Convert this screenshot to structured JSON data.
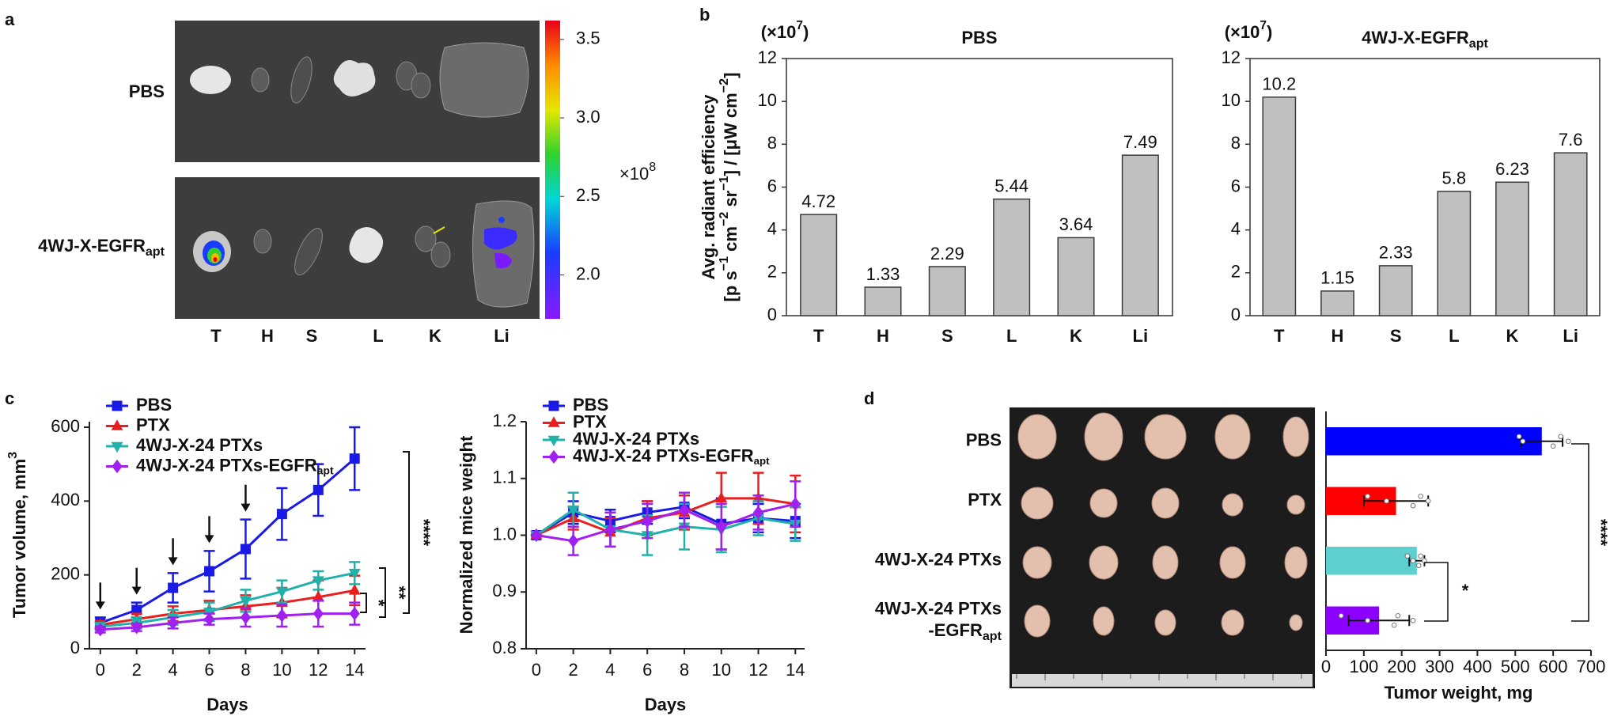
{
  "panel_labels": [
    "a",
    "b",
    "c",
    "d"
  ],
  "imaging": {
    "rows": [
      "PBS",
      [
        {
          "text": "4WJ-X-EGFR"
        },
        {
          "text": "apt",
          "sub": true
        }
      ]
    ],
    "organs": [
      "T",
      "H",
      "S",
      "L",
      "K",
      "Li"
    ],
    "colorbar": {
      "lim": [
        1.72,
        3.62
      ],
      "ticks": [
        3.5,
        {
          "value": 3,
          "label": "3.0"
        },
        2.5,
        {
          "value": 2,
          "label": "2.0"
        }
      ],
      "scale": [
        {
          "text": "×10"
        },
        {
          "text": "8",
          "sup": true
        }
      ]
    }
  },
  "chart_data": [
    {
      "type": "bar",
      "title": "PBS",
      "scale": [
        {
          "text": "(×10"
        },
        {
          "text": "7",
          "sup": true
        },
        {
          "text": ")"
        }
      ],
      "ylabel": "Avg. radiant efficiency",
      "ylabel_units": [
        {
          "text": "[p s"
        },
        {
          "text": "−1",
          "sup": true
        },
        {
          "text": " cm"
        },
        {
          "text": "−2",
          "sup": true
        },
        {
          "text": " sr"
        },
        {
          "text": "−1",
          "sup": true
        },
        {
          "text": "] / [μW cm"
        },
        {
          "text": "−2",
          "sup": true
        },
        {
          "text": "]"
        }
      ],
      "categories": [
        "T",
        "H",
        "S",
        "L",
        "K",
        "Li"
      ],
      "values": [
        4.72,
        1.33,
        2.29,
        5.44,
        3.64,
        7.49
      ],
      "color": "#c0c0c0",
      "edgecolor": "#3a3a3a",
      "ylim": [
        0,
        12
      ],
      "yticks": [
        0,
        2,
        4,
        6,
        8,
        10,
        12
      ]
    },
    {
      "type": "bar",
      "title": [
        {
          "text": "4WJ-X-EGFR"
        },
        {
          "text": "apt",
          "sub": true
        }
      ],
      "scale": [
        {
          "text": "(×10"
        },
        {
          "text": "7",
          "sup": true
        },
        {
          "text": ")"
        }
      ],
      "categories": [
        "T",
        "H",
        "S",
        "L",
        "K",
        "Li"
      ],
      "values": [
        10.2,
        1.15,
        2.33,
        5.8,
        6.23,
        7.6
      ],
      "color": "#c0c0c0",
      "edgecolor": "#3a3a3a",
      "ylim": [
        0,
        12
      ],
      "yticks": [
        0,
        2,
        4,
        6,
        8,
        10,
        12
      ]
    },
    {
      "type": "line",
      "xlabel": "Days",
      "ylabel": [
        {
          "text": "Tumor volume, mm"
        },
        {
          "text": "3",
          "sup": true
        }
      ],
      "x": [
        0,
        2,
        4,
        6,
        8,
        10,
        12,
        14
      ],
      "xlim": [
        -0.6,
        14.6
      ],
      "xticks": [
        0,
        2,
        4,
        6,
        8,
        10,
        12,
        14
      ],
      "ylim": [
        0,
        615
      ],
      "yticks": [
        0,
        200,
        400,
        600
      ],
      "legend": "upper left",
      "series": [
        {
          "name": "PBS",
          "color": "#1a1ae6",
          "marker": "square",
          "values": [
            70,
            105,
            165,
            210,
            270,
            365,
            430,
            515
          ],
          "errors": [
            15,
            20,
            40,
            55,
            80,
            70,
            70,
            85
          ]
        },
        {
          "name": "PTX",
          "color": "#e81f1f",
          "marker": "triangle-up",
          "values": [
            65,
            80,
            95,
            105,
            115,
            125,
            140,
            158
          ],
          "errors": [
            10,
            15,
            20,
            25,
            30,
            40,
            45,
            40
          ]
        },
        {
          "name": "4WJ-X-24 PTXs",
          "color": "#20b2aa",
          "marker": "triangle-down",
          "values": [
            60,
            70,
            85,
            100,
            130,
            155,
            185,
            205
          ],
          "errors": [
            10,
            15,
            20,
            25,
            30,
            30,
            25,
            30
          ]
        },
        {
          "name": [
            {
              "text": "4WJ-X-24 PTXs-EGFR"
            },
            {
              "text": "apt",
              "sub": true
            }
          ],
          "color": "#a020f0",
          "marker": "diamond",
          "values": [
            52,
            58,
            70,
            80,
            85,
            90,
            95,
            95
          ],
          "errors": [
            8,
            10,
            15,
            15,
            25,
            30,
            35,
            30
          ]
        }
      ],
      "dose_days": [
        0,
        2,
        4,
        6,
        8
      ],
      "annotations": [
        "****",
        "**",
        "*"
      ]
    },
    {
      "type": "line",
      "xlabel": "Days",
      "ylabel": "Normalized mice weight",
      "x": [
        0,
        2,
        4,
        6,
        8,
        10,
        12,
        14
      ],
      "xlim": [
        -0.55,
        14.5
      ],
      "xticks": [
        0,
        2,
        4,
        6,
        8,
        10,
        12,
        14
      ],
      "ylim": [
        0.8,
        1.2
      ],
      "yticks": [
        0.8,
        0.9,
        {
          "value": 1,
          "label": "1.0"
        },
        1.1,
        1.2
      ],
      "legend": "upper left",
      "series": [
        {
          "name": "PBS",
          "color": "#1a1ae6",
          "marker": "square",
          "values": [
            1.0,
            1.04,
            1.025,
            1.04,
            1.05,
            1.02,
            1.03,
            1.025
          ],
          "errors": [
            0,
            0.02,
            0.02,
            0.02,
            0.02,
            0.045,
            0.025,
            0.03
          ]
        },
        {
          "name": "PTX",
          "color": "#e81f1f",
          "marker": "triangle-up",
          "values": [
            1.0,
            1.03,
            1.005,
            1.03,
            1.04,
            1.065,
            1.065,
            1.055
          ],
          "errors": [
            0,
            0.02,
            0.025,
            0.03,
            0.03,
            0.045,
            0.045,
            0.05
          ]
        },
        {
          "name": "4WJ-X-24 PTXs",
          "color": "#20b2aa",
          "marker": "triangle-down",
          "values": [
            1.0,
            1.045,
            1.01,
            1.0,
            1.015,
            1.01,
            1.03,
            1.02
          ],
          "errors": [
            0,
            0.03,
            0.03,
            0.035,
            0.04,
            0.04,
            0.03,
            0.03
          ]
        },
        {
          "name": [
            {
              "text": "4WJ-X-24 PTXs-EGFR"
            },
            {
              "text": "apt",
              "sub": true
            }
          ],
          "color": "#a020f0",
          "marker": "diamond",
          "values": [
            1.0,
            0.99,
            1.01,
            1.025,
            1.045,
            1.015,
            1.04,
            1.055
          ],
          "errors": [
            0,
            0.025,
            0.03,
            0.03,
            0.03,
            0.04,
            0.03,
            0.04
          ]
        }
      ]
    },
    {
      "type": "barh",
      "xlabel": "Tumor weight, mg",
      "categories": [
        "PBS",
        "PTX",
        "4WJ-X-24 PTXs",
        [
          {
            "text": "4WJ-X-24 PTXs"
          },
          {
            "text": "-EGFR",
            "newline": true
          },
          {
            "text": "apt",
            "sub": true
          }
        ]
      ],
      "values": [
        570,
        185,
        240,
        140
      ],
      "errors": [
        55,
        85,
        20,
        80
      ],
      "points": [
        [
          510,
          520,
          600,
          620,
          640
        ],
        [
          110,
          160,
          230,
          250,
          270
        ],
        [
          215,
          230,
          245,
          250,
          260
        ],
        [
          40,
          110,
          180,
          190,
          230
        ]
      ],
      "colors": [
        "#0000ff",
        "#ff0000",
        "#5ecfcf",
        "#8b00ff"
      ],
      "xlim": [
        0,
        700
      ],
      "xticks": [
        0,
        100,
        200,
        300,
        400,
        500,
        600,
        700
      ],
      "annotations": [
        "****",
        "*"
      ]
    }
  ]
}
